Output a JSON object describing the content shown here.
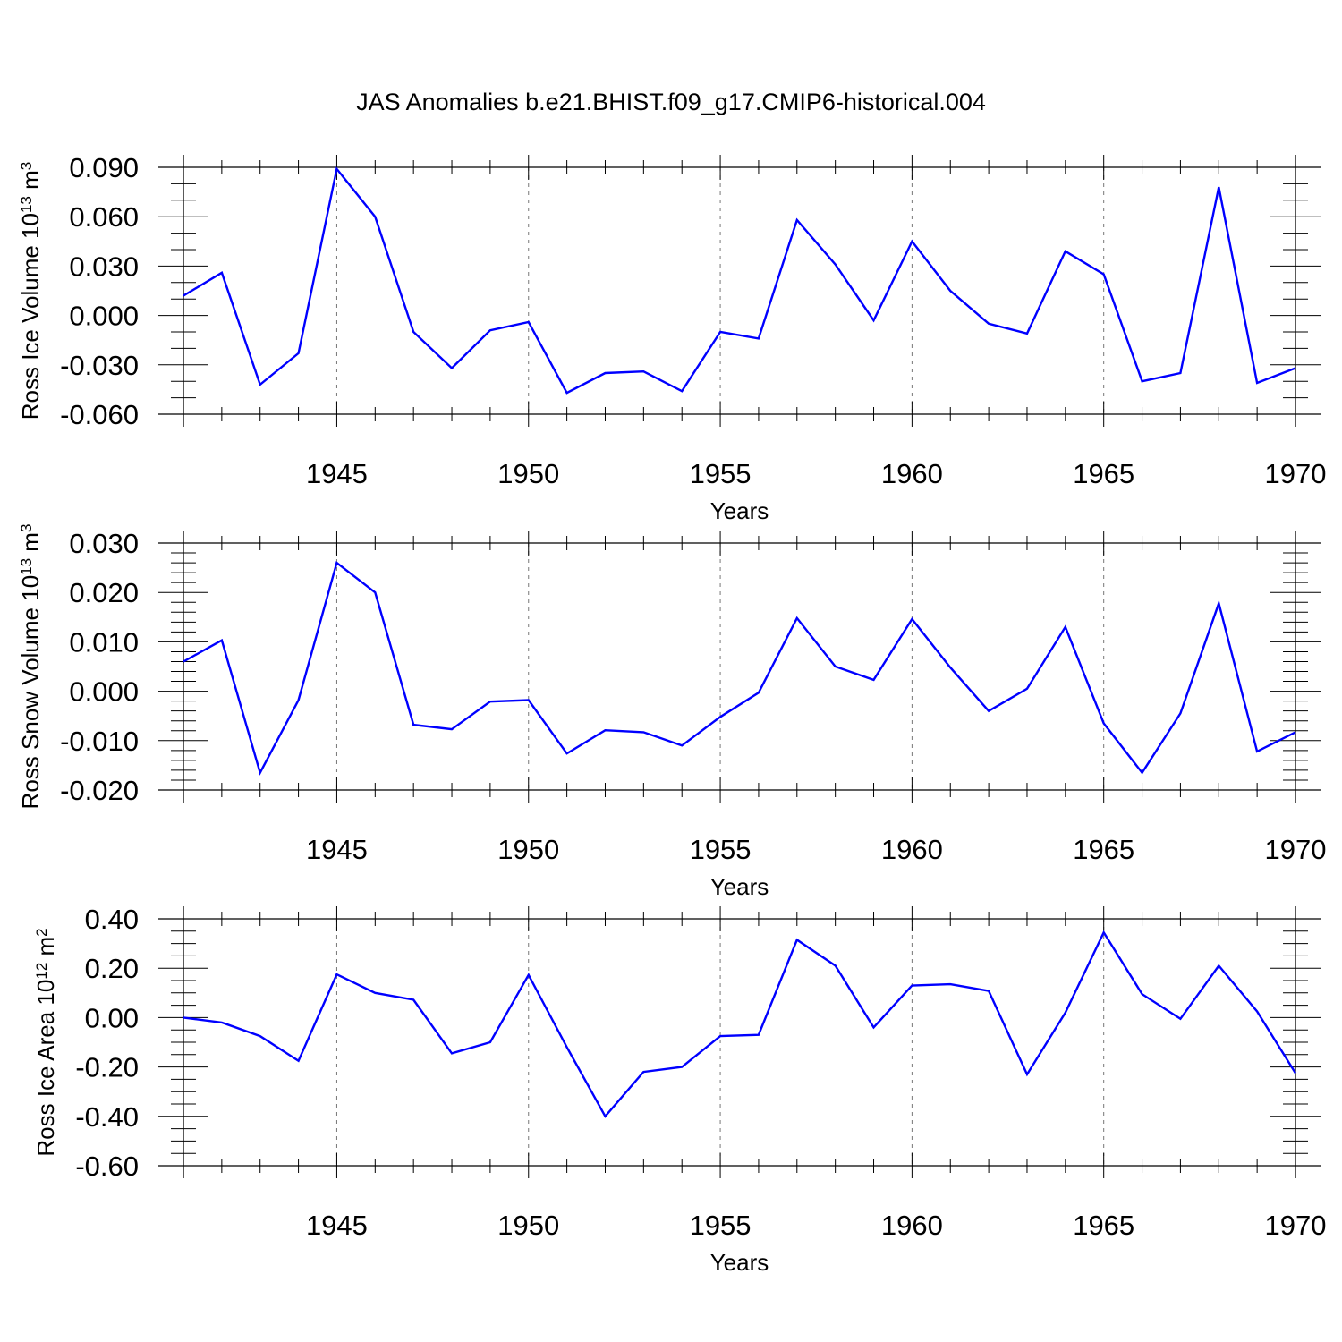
{
  "title": "JAS Anomalies b.e21.BHIST.f09_g17.CMIP6-historical.004",
  "colors": {
    "series": "#0000ff",
    "axis": "#000000",
    "grid": "#777777"
  },
  "chart_data": [
    {
      "type": "line",
      "xlabel": "Years",
      "ylabel_text": "Ross Ice Volume 10",
      "ylabel_sup1": "13",
      "ylabel_unit": " m",
      "ylabel_sup2": "3",
      "xlim": [
        1941,
        1970
      ],
      "ylim": [
        -0.06,
        0.09
      ],
      "x_ticks": [
        1945,
        1950,
        1955,
        1960,
        1965,
        1970
      ],
      "x_tick_labels": [
        "1945",
        "1950",
        "1955",
        "1960",
        "1965",
        "1970"
      ],
      "y_ticks": [
        -0.06,
        -0.03,
        0.0,
        0.03,
        0.06,
        0.09
      ],
      "y_tick_labels": [
        "-0.060",
        "-0.030",
        "0.000",
        "0.030",
        "0.060",
        "0.090"
      ],
      "y_minor_step": 0.01,
      "x": [
        1941,
        1942,
        1943,
        1944,
        1945,
        1946,
        1947,
        1948,
        1949,
        1950,
        1951,
        1952,
        1953,
        1954,
        1955,
        1956,
        1957,
        1958,
        1959,
        1960,
        1961,
        1962,
        1963,
        1964,
        1965,
        1966,
        1967,
        1968,
        1969,
        1970
      ],
      "values": [
        0.012,
        0.026,
        -0.042,
        -0.023,
        0.089,
        0.06,
        -0.01,
        -0.032,
        -0.009,
        -0.004,
        -0.047,
        -0.035,
        -0.034,
        -0.046,
        -0.01,
        -0.014,
        0.058,
        0.031,
        -0.003,
        0.045,
        0.015,
        -0.005,
        -0.011,
        0.039,
        0.025,
        -0.04,
        -0.035,
        0.078,
        -0.041,
        -0.032
      ]
    },
    {
      "type": "line",
      "xlabel": "Years",
      "ylabel_text": "Ross Snow Volume 10",
      "ylabel_sup1": "13",
      "ylabel_unit": " m",
      "ylabel_sup2": "3",
      "xlim": [
        1941,
        1970
      ],
      "ylim": [
        -0.02,
        0.03
      ],
      "x_ticks": [
        1945,
        1950,
        1955,
        1960,
        1965,
        1970
      ],
      "x_tick_labels": [
        "1945",
        "1950",
        "1955",
        "1960",
        "1965",
        "1970"
      ],
      "y_ticks": [
        -0.02,
        -0.01,
        0.0,
        0.01,
        0.02,
        0.03
      ],
      "y_tick_labels": [
        "-0.020",
        "-0.010",
        "0.000",
        "0.010",
        "0.020",
        "0.030"
      ],
      "y_minor_step": 0.002,
      "x": [
        1941,
        1942,
        1943,
        1944,
        1945,
        1946,
        1947,
        1948,
        1949,
        1950,
        1951,
        1952,
        1953,
        1954,
        1955,
        1956,
        1957,
        1958,
        1959,
        1960,
        1961,
        1962,
        1963,
        1964,
        1965,
        1966,
        1967,
        1968,
        1969,
        1970
      ],
      "values": [
        0.006,
        0.0103,
        -0.0165,
        -0.0018,
        0.026,
        0.02,
        -0.0068,
        -0.0077,
        -0.0021,
        -0.0018,
        -0.0126,
        -0.0079,
        -0.0083,
        -0.011,
        -0.0052,
        -0.0003,
        0.0148,
        0.005,
        0.0023,
        0.0146,
        0.0048,
        -0.004,
        0.0005,
        0.013,
        -0.0065,
        -0.0165,
        -0.0045,
        0.0178,
        -0.0122,
        -0.0083
      ]
    },
    {
      "type": "line",
      "xlabel": "Years",
      "ylabel_text": "Ross Ice Area 10",
      "ylabel_sup1": "12",
      "ylabel_unit": " m",
      "ylabel_sup2": "2",
      "xlim": [
        1941,
        1970
      ],
      "ylim": [
        -0.6,
        0.4
      ],
      "x_ticks": [
        1945,
        1950,
        1955,
        1960,
        1965,
        1970
      ],
      "x_tick_labels": [
        "1945",
        "1950",
        "1955",
        "1960",
        "1965",
        "1970"
      ],
      "y_ticks": [
        -0.6,
        -0.4,
        -0.2,
        0.0,
        0.2,
        0.4
      ],
      "y_tick_labels": [
        "-0.60",
        "-0.40",
        "-0.20",
        "0.00",
        "0.20",
        "0.40"
      ],
      "y_minor_step": 0.05,
      "x": [
        1941,
        1942,
        1943,
        1944,
        1945,
        1946,
        1947,
        1948,
        1949,
        1950,
        1951,
        1952,
        1953,
        1954,
        1955,
        1956,
        1957,
        1958,
        1959,
        1960,
        1961,
        1962,
        1963,
        1964,
        1965,
        1966,
        1967,
        1968,
        1969,
        1970
      ],
      "values": [
        0.0,
        -0.02,
        -0.075,
        -0.175,
        0.175,
        0.1,
        0.072,
        -0.145,
        -0.1,
        0.173,
        -0.12,
        -0.4,
        -0.22,
        -0.2,
        -0.075,
        -0.07,
        0.315,
        0.21,
        -0.04,
        0.13,
        0.135,
        0.108,
        -0.23,
        0.02,
        0.345,
        0.095,
        -0.005,
        0.21,
        0.025,
        -0.225
      ]
    }
  ]
}
